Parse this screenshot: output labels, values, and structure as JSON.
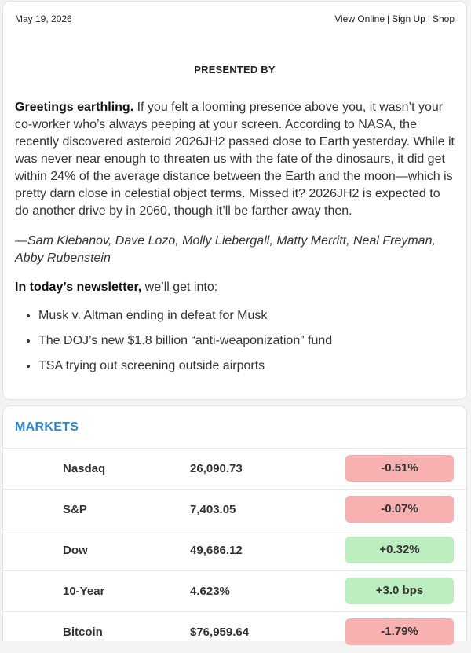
{
  "header": {
    "date": "May 19, 2026",
    "links": [
      "View Online",
      "Sign Up",
      "Shop"
    ],
    "separator": "|"
  },
  "presented_by": "PRESENTED BY",
  "intro": {
    "greeting": "Greetings earthling.",
    "body": " If you felt a looming presence above you, it wasn’t your co-worker who’s always peeping at your screen. According to NASA, the recently discovered asteroid 2026JH2 passed close to Earth yesterday. While it was never near enough to threaten us with the fate of the dinosaurs, it did get within 24% of the average distance between the Earth and the moon—which is pretty darn close in celestial object terms. Missed it? 2026JH2 is expected to do another drive by in 2060, though it’ll be farther away then."
  },
  "byline": "—Sam Klebanov, Dave Lozo, Molly Liebergall, Matty Merritt, Neal Freyman, Abby Rubenstein",
  "today": {
    "lead": "In today’s newsletter,",
    "rest": " we’ll get into:",
    "items": [
      "Musk v. Altman ending in defeat for Musk",
      "The DOJ’s new $1.8 billion “anti-weaponization” fund",
      "TSA trying out screening outside airports"
    ]
  },
  "markets": {
    "title": "MARKETS",
    "colors": {
      "down": "#f8b0b0",
      "up": "#bdeebf",
      "title": "#2b88d8"
    },
    "rows": [
      {
        "name": "Nasdaq",
        "value": "26,090.73",
        "change": "-0.51%",
        "direction": "down"
      },
      {
        "name": "S&P",
        "value": "7,403.05",
        "change": "-0.07%",
        "direction": "down"
      },
      {
        "name": "Dow",
        "value": "49,686.12",
        "change": "+0.32%",
        "direction": "up"
      },
      {
        "name": "10-Year",
        "value": "4.623%",
        "change": "+3.0 bps",
        "direction": "up"
      },
      {
        "name": "Bitcoin",
        "value": "$76,959.64",
        "change": "-1.79%",
        "direction": "down"
      }
    ]
  }
}
